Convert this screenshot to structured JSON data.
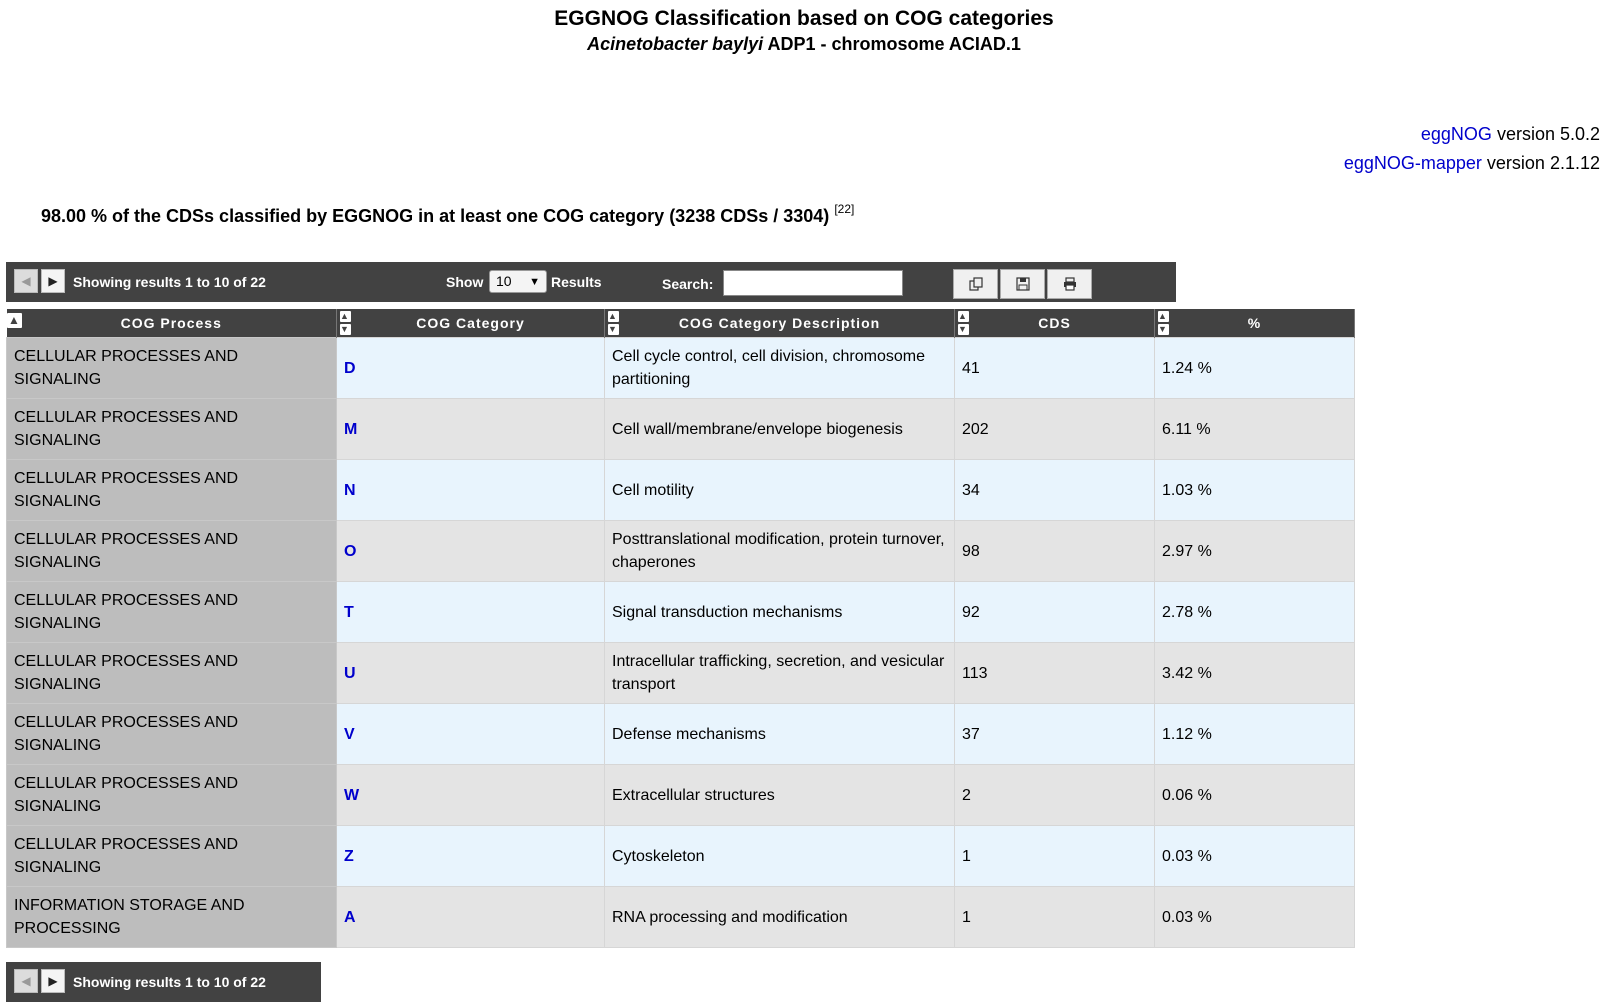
{
  "header": {
    "title": "EGGNOG Classification based on COG categories",
    "organism_italic": "Acinetobacter baylyi",
    "organism_rest": "ADP1 - chromosome ACIAD.1"
  },
  "versions": [
    {
      "link": "eggNOG",
      "text": "version 5.0.2"
    },
    {
      "link": "eggNOG-mapper",
      "text": "version 2.1.12"
    }
  ],
  "summary": {
    "text": "98.00 % of the CDSs classified by EGGNOG in at least one COG category (3238 CDSs / 3304)",
    "ref": "[22]"
  },
  "toolbar": {
    "showing": "Showing results 1 to 10 of 22",
    "show_label": "Show",
    "show_value": "10",
    "results_label": "Results",
    "search_label": "Search:",
    "search_value": ""
  },
  "icons": {
    "prev": "prev-arrow-icon",
    "next": "next-arrow-icon",
    "copy": "copy-icon",
    "save": "save-icon",
    "print": "print-icon"
  },
  "table": {
    "columns": [
      "COG Process",
      "COG Category",
      "COG Category Description",
      "CDS",
      "%"
    ],
    "rows": [
      {
        "process": "CELLULAR PROCESSES AND SIGNALING",
        "category": "D",
        "description": "Cell cycle control, cell division, chromosome partitioning",
        "cds": "41",
        "percent": "1.24 %"
      },
      {
        "process": "CELLULAR PROCESSES AND SIGNALING",
        "category": "M",
        "description": "Cell wall/membrane/envelope biogenesis",
        "cds": "202",
        "percent": "6.11 %"
      },
      {
        "process": "CELLULAR PROCESSES AND SIGNALING",
        "category": "N",
        "description": "Cell motility",
        "cds": "34",
        "percent": "1.03 %"
      },
      {
        "process": "CELLULAR PROCESSES AND SIGNALING",
        "category": "O",
        "description": "Posttranslational modification, protein turnover, chaperones",
        "cds": "98",
        "percent": "2.97 %"
      },
      {
        "process": "CELLULAR PROCESSES AND SIGNALING",
        "category": "T",
        "description": "Signal transduction mechanisms",
        "cds": "92",
        "percent": "2.78 %"
      },
      {
        "process": "CELLULAR PROCESSES AND SIGNALING",
        "category": "U",
        "description": "Intracellular trafficking, secretion, and vesicular transport",
        "cds": "113",
        "percent": "3.42 %"
      },
      {
        "process": "CELLULAR PROCESSES AND SIGNALING",
        "category": "V",
        "description": "Defense mechanisms",
        "cds": "37",
        "percent": "1.12 %"
      },
      {
        "process": "CELLULAR PROCESSES AND SIGNALING",
        "category": "W",
        "description": "Extracellular structures",
        "cds": "2",
        "percent": "0.06 %"
      },
      {
        "process": "CELLULAR PROCESSES AND SIGNALING",
        "category": "Z",
        "description": "Cytoskeleton",
        "cds": "1",
        "percent": "0.03 %"
      },
      {
        "process": "INFORMATION STORAGE AND PROCESSING",
        "category": "A",
        "description": "RNA processing and modification",
        "cds": "1",
        "percent": "0.03 %"
      }
    ]
  },
  "colors": {
    "bar_bg": "#424242",
    "link": "#0000cc",
    "row_odd": "#e8f4fd",
    "row_even": "#e4e4e4",
    "process_col": "#bdbdbd"
  }
}
